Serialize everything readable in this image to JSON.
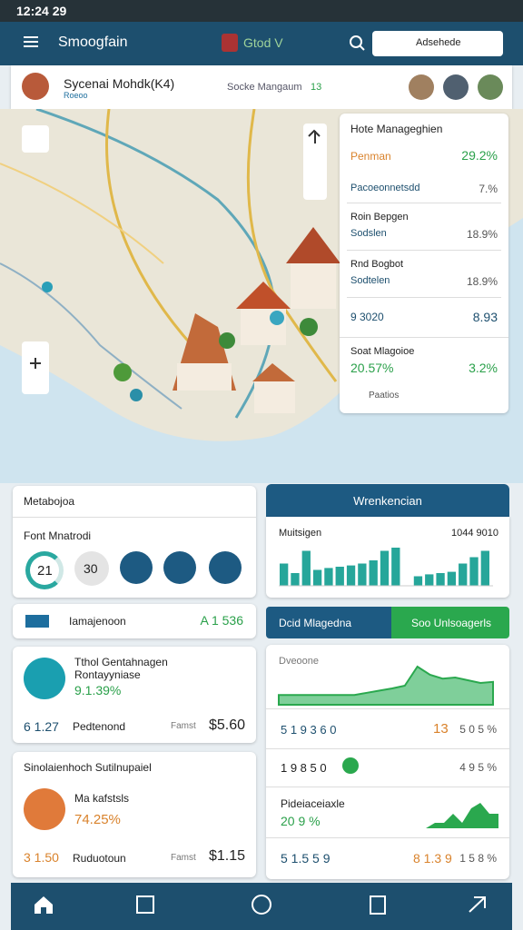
{
  "status_bar": {
    "time": "12:24 29"
  },
  "app_bar": {
    "title": "Smoogfain",
    "logo": "Gtod V",
    "search": "Adsehede"
  },
  "profile": {
    "name": "Sycenai Mohdk(K4)",
    "subtitle": "Roeoo",
    "center": "Socke Mangaum",
    "badge": "13"
  },
  "map_panel": {
    "title": "Hote Manageghien",
    "items": [
      {
        "label": "Penman",
        "value": "29.2%"
      },
      {
        "label": "Pacoeonnetsdd",
        "value": "7.%"
      },
      {
        "heading": "Roin Bepgen",
        "label": "Sodslen",
        "value": "18.9%"
      },
      {
        "heading": "Rnd Bogbot",
        "label": "Sodtelen",
        "value": "18.9%"
      },
      {
        "label": "9 3020",
        "value": "8.93"
      }
    ],
    "footer": {
      "heading": "Soat Mlagoioe",
      "value": "20.57%",
      "value2": "3.2%",
      "label": "Paatios"
    }
  },
  "left": {
    "card1": {
      "title": "Metabojoa",
      "subtitle": "Font Mnatrodi",
      "ring": "21",
      "circle": "30"
    },
    "row": {
      "label": "Iamajenoon",
      "value": "A 1 536"
    },
    "card2": {
      "title": "Tthol Gentahnagen",
      "title2": "Rontayyniase",
      "percent": "9.1.39%",
      "amount": "6 1.27",
      "label": "Pedtenond",
      "label2": "Famst",
      "price": "$5.60"
    },
    "card3": {
      "title": "Sinolaienhoch Sutilnupaiel",
      "subtitle": "Ma kafstsls",
      "percent": "74.25%",
      "amount": "3 1.50",
      "label": "Ruduotoun",
      "label2": "Famst",
      "price": "$1.15"
    }
  },
  "right": {
    "header": "Wrenkencian",
    "chart": {
      "title": "Muitsigen",
      "value_label": "1044 9010",
      "values": [
        35,
        20,
        55,
        25,
        28,
        30,
        32,
        35,
        40,
        55,
        60,
        null,
        15,
        18,
        20,
        22,
        35,
        45,
        55
      ]
    },
    "tabs": [
      "Dcid Mlagedna",
      "Soo Unlsoagerls"
    ],
    "area": {
      "title": "Dveoone",
      "values": [
        18,
        18,
        18,
        18,
        18,
        18,
        18,
        22,
        26,
        30,
        35,
        70,
        55,
        48,
        50,
        45,
        40,
        42
      ]
    },
    "rows": [
      {
        "a": "5 1 9 3 6 0",
        "b": "13",
        "c": "5 0 5 %"
      },
      {
        "a": "1 9 8 5 0",
        "c": "4 9 5 %"
      }
    ],
    "pideia": {
      "title": "Pideiaceiaxle",
      "value": "20 9 %"
    },
    "last": {
      "a": "5 1.5 5 9",
      "b": "8 1.3 9",
      "c": "1 5 8 %"
    }
  }
}
